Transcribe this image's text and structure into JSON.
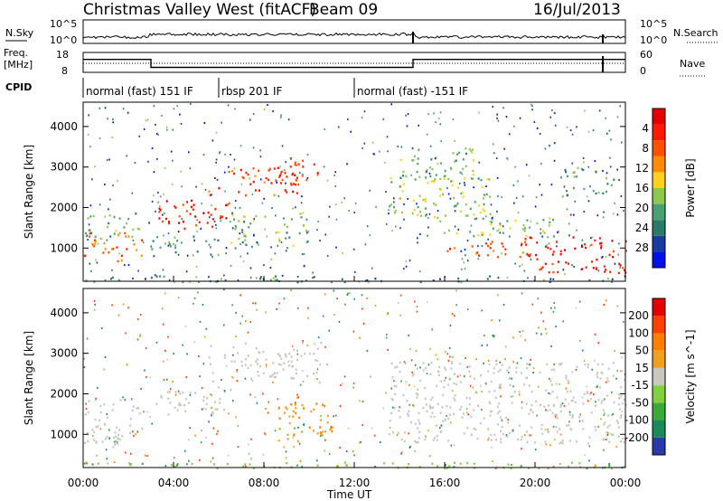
{
  "header": {
    "station": "Christmas Valley West (fitACF)",
    "beam": "Beam 09",
    "date": "16/Jul/2013"
  },
  "aux_panels": {
    "nsky_label": "N.Sky",
    "nsky_ticks": [
      "10^5",
      "10^0"
    ],
    "nsearch_label": "N.Search",
    "nsearch_ticks": [
      "10^5",
      "10^0"
    ],
    "freq_label": "Freq.",
    "freq_unit": "[MHz]",
    "freq_ticks": [
      "18",
      "8"
    ],
    "nave_label": "Nave",
    "nave_ticks": [
      "60",
      "0"
    ],
    "cpid_label": "CPID",
    "cpid_segments": [
      {
        "label": "normal (fast) 151 IF",
        "start_h": 0,
        "end_h": 6
      },
      {
        "label": "rbsp 201 IF",
        "start_h": 6,
        "end_h": 12
      },
      {
        "label": "normal (fast) -151 IF",
        "start_h": 12,
        "end_h": 24
      }
    ],
    "freq_mhz": [
      {
        "start_h": 0,
        "end_h": 3,
        "value": 14.5
      },
      {
        "start_h": 3,
        "end_h": 14.6,
        "value": 10.5
      },
      {
        "start_h": 14.6,
        "end_h": 24,
        "value": 14.5
      }
    ]
  },
  "chart_data": [
    {
      "type": "heatmap",
      "title": "",
      "xlabel": "",
      "ylabel": "Slant Range [km]",
      "xlim": [
        0,
        24
      ],
      "ylim": [
        180,
        4600
      ],
      "yticks": [
        "1000",
        "2000",
        "3000",
        "4000"
      ],
      "colorbar": {
        "label": "Power [dB]",
        "ticks": [
          "4",
          "8",
          "12",
          "16",
          "20",
          "24",
          "28"
        ],
        "colors": [
          "#0010e6",
          "#1a3aa0",
          "#2a7a6a",
          "#4aa070",
          "#8cc850",
          "#ffd020",
          "#ff8c00",
          "#ff5000",
          "#ff1a00",
          "#e60000"
        ]
      },
      "blobs": [
        {
          "t0": 0.0,
          "t1": 2.6,
          "r0": 700,
          "r1": 1400,
          "p": 22
        },
        {
          "t0": 0.0,
          "t1": 2.6,
          "r0": 1300,
          "r1": 1900,
          "p": 12
        },
        {
          "t0": 3.0,
          "t1": 6.5,
          "r0": 1500,
          "r1": 2200,
          "p": 26
        },
        {
          "t0": 5.5,
          "t1": 9.5,
          "r0": 2300,
          "r1": 3000,
          "p": 24
        },
        {
          "t0": 8.5,
          "t1": 10.5,
          "r0": 2700,
          "r1": 3300,
          "p": 25
        },
        {
          "t0": 3.0,
          "t1": 6.0,
          "r0": 800,
          "r1": 1300,
          "p": 10
        },
        {
          "t0": 6.5,
          "t1": 10.0,
          "r0": 1000,
          "r1": 1900,
          "p": 12
        },
        {
          "t0": 13.5,
          "t1": 18.0,
          "r0": 1800,
          "r1": 2800,
          "p": 14
        },
        {
          "t0": 15.5,
          "t1": 21.0,
          "r0": 1300,
          "r1": 1800,
          "p": 13
        },
        {
          "t0": 16.0,
          "t1": 19.5,
          "r0": 800,
          "r1": 1200,
          "p": 24
        },
        {
          "t0": 19.5,
          "t1": 24.0,
          "r0": 400,
          "r1": 1300,
          "p": 26
        },
        {
          "t0": 14.0,
          "t1": 17.5,
          "r0": 2700,
          "r1": 3500,
          "p": 12
        },
        {
          "t0": 21.0,
          "t1": 23.5,
          "r0": 2300,
          "r1": 3000,
          "p": 10
        },
        {
          "t0": 0.0,
          "t1": 24.0,
          "r0": 180,
          "r1": 330,
          "p": 9
        }
      ]
    },
    {
      "type": "heatmap",
      "title": "",
      "xlabel": "Time UT",
      "ylabel": "Slant Range [km]",
      "xlim": [
        0,
        24
      ],
      "ylim": [
        180,
        4600
      ],
      "xticks": [
        "00:00",
        "04:00",
        "08:00",
        "12:00",
        "16:00",
        "20:00",
        "00:00"
      ],
      "yticks": [
        "1000",
        "2000",
        "3000",
        "4000"
      ],
      "colorbar": {
        "label": "Velocity [m s^-1]",
        "ticks": [
          "200",
          "100",
          "50",
          "15",
          "-15",
          "-50",
          "-100",
          "-200"
        ],
        "colors": [
          "#2a3aa8",
          "#1a8a5a",
          "#3aaa3a",
          "#80d040",
          "#c8c8c0",
          "#f0a020",
          "#ff8000",
          "#ff4000",
          "#e60000"
        ]
      },
      "blobs": [
        {
          "t0": 0.0,
          "t1": 2.6,
          "r0": 700,
          "r1": 1900,
          "v": 0
        },
        {
          "t0": 3.0,
          "t1": 6.5,
          "r0": 1500,
          "r1": 2200,
          "v": 0
        },
        {
          "t0": 5.5,
          "t1": 10.5,
          "r0": 2300,
          "r1": 3300,
          "v": 0
        },
        {
          "t0": 8.5,
          "t1": 11.0,
          "r0": 800,
          "r1": 1800,
          "v": -45
        },
        {
          "t0": 13.5,
          "t1": 24.0,
          "r0": 800,
          "r1": 2800,
          "v": 0
        },
        {
          "t0": 0.0,
          "t1": 24.0,
          "r0": 180,
          "r1": 330,
          "v": 40
        }
      ]
    }
  ]
}
